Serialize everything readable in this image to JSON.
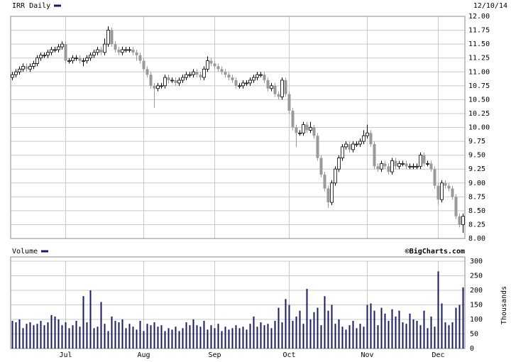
{
  "chart_data": [
    {
      "type": "candlestick",
      "title": "IRR Daily",
      "date": "12/10/14",
      "up_color": "#ffffff",
      "down_color": "#999999",
      "outline": "#000000",
      "grid": true,
      "ylim": [
        8,
        12
      ],
      "yticks": [
        {
          "value": 8,
          "label": "8.00"
        },
        {
          "value": 8.25,
          "label": "8.25"
        },
        {
          "value": 8.5,
          "label": "8.50"
        },
        {
          "value": 8.75,
          "label": "8.75"
        },
        {
          "value": 9,
          "label": "9.00"
        },
        {
          "value": 9.25,
          "label": "9.25"
        },
        {
          "value": 9.5,
          "label": "9.50"
        },
        {
          "value": 9.75,
          "label": "9.75"
        },
        {
          "value": 10,
          "label": "10.00"
        },
        {
          "value": 10.25,
          "label": "10.25"
        },
        {
          "value": 10.5,
          "label": "10.50"
        },
        {
          "value": 10.75,
          "label": "10.75"
        },
        {
          "value": 11,
          "label": "11.00"
        },
        {
          "value": 11.25,
          "label": "11.25"
        },
        {
          "value": 11.5,
          "label": "11.50"
        },
        {
          "value": 11.75,
          "label": "11.75"
        },
        {
          "value": 12,
          "label": "12.00"
        }
      ],
      "open": [
        10.9,
        10.95,
        11.0,
        11.05,
        11.1,
        11.05,
        11.1,
        11.15,
        11.25,
        11.3,
        11.3,
        11.35,
        11.4,
        11.4,
        11.45,
        11.5,
        11.2,
        11.2,
        11.25,
        11.25,
        11.2,
        11.2,
        11.25,
        11.3,
        11.35,
        11.4,
        11.35,
        11.5,
        11.75,
        11.5,
        11.4,
        11.35,
        11.4,
        11.4,
        11.4,
        11.35,
        11.3,
        11.2,
        11.05,
        10.95,
        10.75,
        10.7,
        10.75,
        10.75,
        10.9,
        10.85,
        10.85,
        10.8,
        10.85,
        10.9,
        10.95,
        10.95,
        11.0,
        10.95,
        10.9,
        11.05,
        11.2,
        11.15,
        11.1,
        11.05,
        11.0,
        10.95,
        10.9,
        10.85,
        10.75,
        10.75,
        10.8,
        10.8,
        10.85,
        10.9,
        10.95,
        10.95,
        10.85,
        10.7,
        10.75,
        10.6,
        10.55,
        10.85,
        10.6,
        10.3,
        10.0,
        9.9,
        9.9,
        10.05,
        9.95,
        10.0,
        9.85,
        9.45,
        9.15,
        8.9,
        8.65,
        9.0,
        9.25,
        9.45,
        9.65,
        9.7,
        9.6,
        9.7,
        9.7,
        9.75,
        9.85,
        9.9,
        9.7,
        9.3,
        9.25,
        9.35,
        9.3,
        9.2,
        9.4,
        9.3,
        9.35,
        9.35,
        9.3,
        9.3,
        9.3,
        9.3,
        9.5,
        9.35,
        9.35,
        9.25,
        8.95,
        8.7,
        9.0,
        8.95,
        8.9,
        8.75,
        8.4,
        8.25
      ],
      "high": [
        11.0,
        11.05,
        11.1,
        11.15,
        11.15,
        11.15,
        11.2,
        11.3,
        11.35,
        11.35,
        11.4,
        11.45,
        11.45,
        11.5,
        11.55,
        11.55,
        11.25,
        11.3,
        11.3,
        11.3,
        11.25,
        11.3,
        11.35,
        11.4,
        11.45,
        11.45,
        11.6,
        11.82,
        11.8,
        11.55,
        11.45,
        11.45,
        11.45,
        11.45,
        11.45,
        11.4,
        11.35,
        11.25,
        11.1,
        11.0,
        10.8,
        10.8,
        10.8,
        10.95,
        10.95,
        10.9,
        10.9,
        10.9,
        10.95,
        11.0,
        11.0,
        11.05,
        11.05,
        11.0,
        11.1,
        11.28,
        11.25,
        11.2,
        11.15,
        11.1,
        11.05,
        11.0,
        10.95,
        10.9,
        10.8,
        10.85,
        10.85,
        10.9,
        10.95,
        11.0,
        11.0,
        11.0,
        10.9,
        10.8,
        10.8,
        10.65,
        10.9,
        10.9,
        10.65,
        10.35,
        10.05,
        9.95,
        10.1,
        10.1,
        10.1,
        10.05,
        9.9,
        9.5,
        9.2,
        8.95,
        9.05,
        9.3,
        9.5,
        9.7,
        9.75,
        9.75,
        9.75,
        9.75,
        9.8,
        9.95,
        10.05,
        9.95,
        9.75,
        9.35,
        9.4,
        9.4,
        9.35,
        9.45,
        9.45,
        9.4,
        9.4,
        9.4,
        9.35,
        9.35,
        9.35,
        9.55,
        9.55,
        9.4,
        9.4,
        9.3,
        9.0,
        9.05,
        9.05,
        9.0,
        8.95,
        8.8,
        8.45,
        8.45
      ],
      "low": [
        10.85,
        10.9,
        10.95,
        11.0,
        11.0,
        11.0,
        11.05,
        11.1,
        11.2,
        11.25,
        11.25,
        11.3,
        11.35,
        11.35,
        11.4,
        11.15,
        11.15,
        11.15,
        11.2,
        11.15,
        11.1,
        11.15,
        11.2,
        11.25,
        11.3,
        11.3,
        11.3,
        11.45,
        11.45,
        11.35,
        11.3,
        11.3,
        11.35,
        11.35,
        11.3,
        11.2,
        11.15,
        11.0,
        10.9,
        10.7,
        10.35,
        10.65,
        10.7,
        10.7,
        10.8,
        10.8,
        10.75,
        10.75,
        10.8,
        10.85,
        10.9,
        10.9,
        10.9,
        10.85,
        10.85,
        11.0,
        11.1,
        11.05,
        11.0,
        10.95,
        10.9,
        10.85,
        10.8,
        10.7,
        10.7,
        10.7,
        10.75,
        10.75,
        10.8,
        10.85,
        10.9,
        10.8,
        10.65,
        10.65,
        10.55,
        10.5,
        10.5,
        10.55,
        10.25,
        9.95,
        9.65,
        9.85,
        9.85,
        9.9,
        9.9,
        9.8,
        9.4,
        9.1,
        8.85,
        8.55,
        8.6,
        8.95,
        9.2,
        9.4,
        9.6,
        9.55,
        9.55,
        9.65,
        9.65,
        9.7,
        9.8,
        9.65,
        9.25,
        9.2,
        9.2,
        9.25,
        9.15,
        9.15,
        9.25,
        9.25,
        9.3,
        9.25,
        9.25,
        9.25,
        9.25,
        9.25,
        9.3,
        9.3,
        9.2,
        8.9,
        8.6,
        8.65,
        8.9,
        8.85,
        8.7,
        8.35,
        8.2,
        8.1
      ],
      "close": [
        10.95,
        11.0,
        11.05,
        11.1,
        11.05,
        11.1,
        11.15,
        11.25,
        11.3,
        11.3,
        11.35,
        11.4,
        11.4,
        11.45,
        11.5,
        11.2,
        11.2,
        11.25,
        11.25,
        11.2,
        11.2,
        11.25,
        11.3,
        11.35,
        11.4,
        11.35,
        11.5,
        11.75,
        11.5,
        11.4,
        11.35,
        11.4,
        11.4,
        11.4,
        11.35,
        11.3,
        11.2,
        11.05,
        10.95,
        10.75,
        10.7,
        10.75,
        10.75,
        10.9,
        10.85,
        10.85,
        10.8,
        10.85,
        10.9,
        10.95,
        10.95,
        11.0,
        10.95,
        10.9,
        11.05,
        11.2,
        11.15,
        11.1,
        11.05,
        11.0,
        10.95,
        10.9,
        10.85,
        10.75,
        10.75,
        10.8,
        10.8,
        10.85,
        10.9,
        10.95,
        10.95,
        10.85,
        10.7,
        10.75,
        10.6,
        10.55,
        10.85,
        10.6,
        10.3,
        10.0,
        9.9,
        9.9,
        10.05,
        9.95,
        10.0,
        9.85,
        9.45,
        9.15,
        8.9,
        8.65,
        9.0,
        9.25,
        9.45,
        9.65,
        9.7,
        9.6,
        9.7,
        9.7,
        9.75,
        9.85,
        9.9,
        9.7,
        9.3,
        9.25,
        9.35,
        9.3,
        9.2,
        9.4,
        9.3,
        9.35,
        9.35,
        9.3,
        9.3,
        9.3,
        9.3,
        9.5,
        9.35,
        9.35,
        9.25,
        8.95,
        8.7,
        9.0,
        8.95,
        8.9,
        8.75,
        8.4,
        8.25,
        8.4
      ]
    },
    {
      "type": "bar",
      "title": "Volume",
      "credit": "©BigCharts.com",
      "ylabel": "Thousands",
      "color": "#1a1a5e",
      "categories": [
        null,
        null,
        null,
        null,
        null,
        null,
        null,
        null,
        null,
        null,
        null,
        null,
        null,
        null,
        null,
        "Jul",
        null,
        null,
        null,
        null,
        null,
        null,
        null,
        null,
        null,
        null,
        null,
        null,
        null,
        null,
        null,
        null,
        null,
        null,
        null,
        null,
        null,
        "Aug",
        null,
        null,
        null,
        null,
        null,
        null,
        null,
        null,
        null,
        null,
        null,
        null,
        null,
        null,
        null,
        null,
        null,
        null,
        null,
        "Sep",
        null,
        null,
        null,
        null,
        null,
        null,
        null,
        null,
        null,
        null,
        null,
        null,
        null,
        null,
        null,
        null,
        null,
        null,
        null,
        null,
        "Oct",
        null,
        null,
        null,
        null,
        null,
        null,
        null,
        null,
        null,
        null,
        null,
        null,
        null,
        null,
        null,
        null,
        null,
        null,
        null,
        null,
        null,
        "Nov",
        null,
        null,
        null,
        null,
        null,
        null,
        null,
        null,
        null,
        null,
        null,
        null,
        null,
        null,
        null,
        null,
        null,
        null,
        null,
        "Dec",
        null,
        null,
        null,
        null,
        null,
        null,
        null
      ],
      "values": [
        95,
        90,
        100,
        70,
        85,
        90,
        80,
        85,
        95,
        80,
        90,
        115,
        110,
        100,
        80,
        90,
        70,
        80,
        95,
        75,
        180,
        90,
        200,
        70,
        75,
        160,
        85,
        60,
        110,
        95,
        90,
        100,
        70,
        85,
        75,
        65,
        95,
        60,
        85,
        80,
        90,
        75,
        80,
        60,
        70,
        65,
        75,
        60,
        70,
        90,
        80,
        100,
        80,
        75,
        95,
        65,
        80,
        70,
        85,
        60,
        75,
        65,
        70,
        80,
        70,
        75,
        65,
        85,
        110,
        75,
        90,
        80,
        85,
        70,
        95,
        140,
        90,
        170,
        150,
        95,
        110,
        130,
        85,
        205,
        100,
        125,
        140,
        80,
        180,
        130,
        150,
        85,
        100,
        75,
        65,
        80,
        95,
        70,
        85,
        75,
        150,
        155,
        130,
        80,
        140,
        120,
        95,
        135,
        110,
        130,
        90,
        85,
        120,
        100,
        95,
        80,
        130,
        70,
        110,
        75,
        265,
        155,
        90,
        80,
        90,
        140,
        150,
        210
      ],
      "ylim": [
        0,
        300
      ],
      "yticks": [
        0,
        50,
        100,
        150,
        200,
        250,
        300
      ]
    }
  ]
}
